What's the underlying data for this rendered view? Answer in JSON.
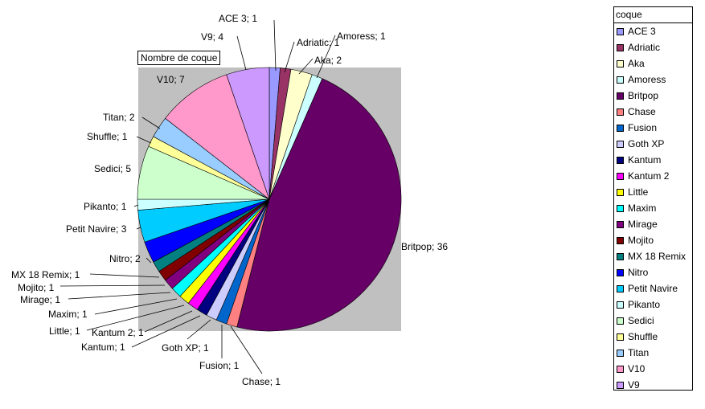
{
  "chart_data": {
    "type": "pie",
    "title": "Nombre de coque",
    "legend_title": "coque",
    "legend_position": "right",
    "slices": [
      {
        "label": "ACE 3",
        "value": 1,
        "color": "#9999ff",
        "text": "ACE 3; 1"
      },
      {
        "label": "Adriatic",
        "value": 1,
        "color": "#993366",
        "text": "Adriatic; 1"
      },
      {
        "label": "Aka",
        "value": 2,
        "color": "#ffffcc",
        "text": "Aka; 2"
      },
      {
        "label": "Amoress",
        "value": 1,
        "color": "#ccffff",
        "text": "Amoress; 1"
      },
      {
        "label": "Britpop",
        "value": 36,
        "color": "#660066",
        "text": "Britpop; 36"
      },
      {
        "label": "Chase",
        "value": 1,
        "color": "#ff8080",
        "text": "Chase; 1"
      },
      {
        "label": "Fusion",
        "value": 1,
        "color": "#0066cc",
        "text": "Fusion; 1"
      },
      {
        "label": "Goth XP",
        "value": 1,
        "color": "#ccccff",
        "text": "Goth XP; 1"
      },
      {
        "label": "Kantum",
        "value": 1,
        "color": "#000080",
        "text": "Kantum; 1"
      },
      {
        "label": "Kantum 2",
        "value": 1,
        "color": "#ff00ff",
        "text": "Kantum 2; 1"
      },
      {
        "label": "Little",
        "value": 1,
        "color": "#ffff00",
        "text": "Little; 1"
      },
      {
        "label": "Maxim",
        "value": 1,
        "color": "#00ffff",
        "text": "Maxim; 1"
      },
      {
        "label": "Mirage",
        "value": 1,
        "color": "#800080",
        "text": "Mirage; 1"
      },
      {
        "label": "Mojito",
        "value": 1,
        "color": "#800000",
        "text": "Mojito; 1"
      },
      {
        "label": "MX 18 Remix",
        "value": 1,
        "color": "#008080",
        "text": "MX 18 Remix; 1"
      },
      {
        "label": "Nitro",
        "value": 2,
        "color": "#0000ff",
        "text": "Nitro; 2"
      },
      {
        "label": "Petit Navire",
        "value": 3,
        "color": "#00ccff",
        "text": "Petit Navire; 3"
      },
      {
        "label": "Pikanto",
        "value": 1,
        "color": "#ccffff",
        "text": "Pikanto; 1"
      },
      {
        "label": "Sedici",
        "value": 5,
        "color": "#ccffcc",
        "text": "Sedici; 5"
      },
      {
        "label": "Shuffle",
        "value": 1,
        "color": "#ffff99",
        "text": "Shuffle; 1"
      },
      {
        "label": "Titan",
        "value": 2,
        "color": "#99ccff",
        "text": "Titan; 2"
      },
      {
        "label": "V10",
        "value": 7,
        "color": "#ff99cc",
        "text": "V10; 7"
      },
      {
        "label": "V9",
        "value": 4,
        "color": "#cc99ff",
        "text": "V9; 4"
      }
    ]
  }
}
